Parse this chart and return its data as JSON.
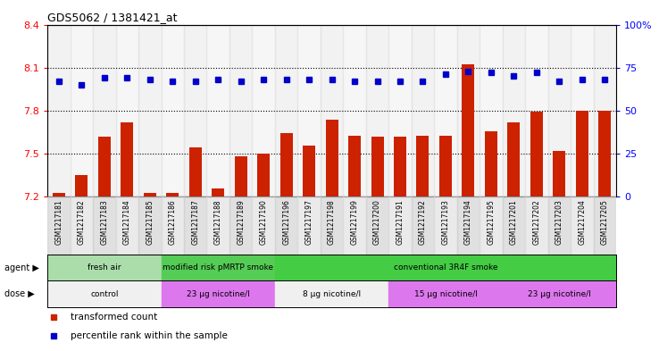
{
  "title": "GDS5062 / 1381421_at",
  "samples": [
    "GSM1217181",
    "GSM1217182",
    "GSM1217183",
    "GSM1217184",
    "GSM1217185",
    "GSM1217186",
    "GSM1217187",
    "GSM1217188",
    "GSM1217189",
    "GSM1217190",
    "GSM1217196",
    "GSM1217197",
    "GSM1217198",
    "GSM1217199",
    "GSM1217200",
    "GSM1217191",
    "GSM1217192",
    "GSM1217193",
    "GSM1217194",
    "GSM1217195",
    "GSM1217201",
    "GSM1217202",
    "GSM1217203",
    "GSM1217204",
    "GSM1217205"
  ],
  "bar_values": [
    7.225,
    7.35,
    7.62,
    7.72,
    7.225,
    7.225,
    7.545,
    7.255,
    7.48,
    7.5,
    7.64,
    7.555,
    7.735,
    7.625,
    7.62,
    7.62,
    7.625,
    7.625,
    8.12,
    7.655,
    7.72,
    7.79,
    7.52,
    7.8,
    7.8
  ],
  "percentile_values": [
    67,
    65,
    69,
    69,
    68,
    67,
    67,
    68,
    67,
    68,
    68,
    68,
    68,
    67,
    67,
    67,
    67,
    71,
    73,
    72,
    70,
    72,
    67,
    68,
    68
  ],
  "y_min": 7.2,
  "y_max": 8.4,
  "y_ticks": [
    7.2,
    7.5,
    7.8,
    8.1,
    8.4
  ],
  "right_y_ticks": [
    0,
    25,
    50,
    75,
    100
  ],
  "bar_color": "#cc2200",
  "dot_color": "#0000cc",
  "bar_bottom": 7.2,
  "agent_groups": [
    {
      "label": "fresh air",
      "start": 0,
      "end": 5,
      "color": "#aaddaa"
    },
    {
      "label": "modified risk pMRTP smoke",
      "start": 5,
      "end": 10,
      "color": "#55cc55"
    },
    {
      "label": "conventional 3R4F smoke",
      "start": 10,
      "end": 25,
      "color": "#44cc44"
    }
  ],
  "dose_groups": [
    {
      "label": "control",
      "start": 0,
      "end": 5,
      "color": "#f0f0f0"
    },
    {
      "label": "23 μg nicotine/l",
      "start": 5,
      "end": 10,
      "color": "#dd77ee"
    },
    {
      "label": "8 μg nicotine/l",
      "start": 10,
      "end": 15,
      "color": "#f0f0f0"
    },
    {
      "label": "15 μg nicotine/l",
      "start": 15,
      "end": 20,
      "color": "#dd77ee"
    },
    {
      "label": "23 μg nicotine/l",
      "start": 20,
      "end": 25,
      "color": "#dd77ee"
    }
  ],
  "legend_items": [
    {
      "label": "transformed count",
      "color": "#cc2200"
    },
    {
      "label": "percentile rank within the sample",
      "color": "#0000cc"
    }
  ],
  "grid_lines": [
    7.5,
    7.8,
    8.1
  ],
  "xtick_bg_colors": [
    "#cccccc",
    "#dddddd"
  ]
}
